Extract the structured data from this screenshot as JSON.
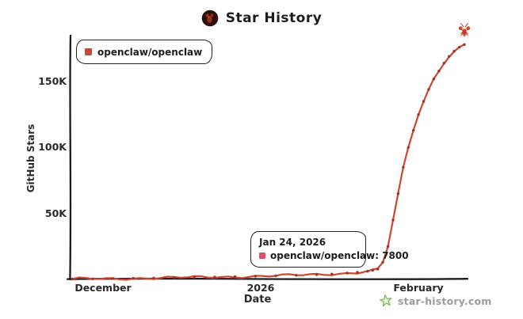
{
  "title": "Star History",
  "legend": {
    "series_label": "openclaw/openclaw",
    "marker_color": "#cc4731"
  },
  "tooltip": {
    "date": "Jan 24, 2026",
    "series": "openclaw/openclaw",
    "value": "7800",
    "line2": "openclaw/openclaw: 7800",
    "marker_color": "#d94f66"
  },
  "watermark": {
    "text": "star-history.com",
    "icon_color": "#7cb94e"
  },
  "colors": {
    "line": "#cc4731",
    "dot": "#a03524",
    "axis": "#1c1c1c",
    "text": "#2a2a2a",
    "muted_text": "#9c9c9c",
    "logo_bg": "#2d100c",
    "logo_mark": "#93301f",
    "lobster": "#c23b2a",
    "lobster_accent": "#e9a23b"
  },
  "chart_data": {
    "type": "line",
    "title": "Star History",
    "xlabel": "Date",
    "ylabel": "GitHub Stars",
    "x_range": [
      "2025-11-25",
      "2026-02-10"
    ],
    "ylim": [
      0,
      180000
    ],
    "grid": false,
    "legend_position": "top-left",
    "xticks": [
      {
        "label": "December",
        "date": "2025-12-01"
      },
      {
        "label": "2026",
        "date": "2026-01-01"
      },
      {
        "label": "February",
        "date": "2026-02-01"
      }
    ],
    "yticks": [
      {
        "label": "50K",
        "value": 50000
      },
      {
        "label": "100K",
        "value": 100000
      },
      {
        "label": "150K",
        "value": 150000
      }
    ],
    "highlighted_point": {
      "date": "2026-01-24",
      "stars": 7800
    },
    "series": [
      {
        "name": "openclaw/openclaw",
        "color": "#cc4731",
        "end_marker": "lobster-icon",
        "points": [
          {
            "date": "2025-11-25",
            "stars": 300
          },
          {
            "date": "2025-11-29",
            "stars": 450
          },
          {
            "date": "2025-12-03",
            "stars": 650
          },
          {
            "date": "2025-12-07",
            "stars": 850
          },
          {
            "date": "2025-12-11",
            "stars": 1050
          },
          {
            "date": "2025-12-15",
            "stars": 1300
          },
          {
            "date": "2025-12-19",
            "stars": 1550
          },
          {
            "date": "2025-12-23",
            "stars": 1800
          },
          {
            "date": "2025-12-27",
            "stars": 2100
          },
          {
            "date": "2025-12-31",
            "stars": 2400
          },
          {
            "date": "2026-01-04",
            "stars": 2750
          },
          {
            "date": "2026-01-08",
            "stars": 3150
          },
          {
            "date": "2026-01-12",
            "stars": 3600
          },
          {
            "date": "2026-01-15",
            "stars": 4100
          },
          {
            "date": "2026-01-18",
            "stars": 4800
          },
          {
            "date": "2026-01-20",
            "stars": 5400
          },
          {
            "date": "2026-01-22",
            "stars": 6200
          },
          {
            "date": "2026-01-23",
            "stars": 6900
          },
          {
            "date": "2026-01-24",
            "stars": 7800
          },
          {
            "date": "2026-01-25",
            "stars": 13000
          },
          {
            "date": "2026-01-26",
            "stars": 25000
          },
          {
            "date": "2026-01-27",
            "stars": 45000
          },
          {
            "date": "2026-01-28",
            "stars": 65000
          },
          {
            "date": "2026-01-29",
            "stars": 85000
          },
          {
            "date": "2026-01-30",
            "stars": 100000
          },
          {
            "date": "2026-01-31",
            "stars": 113000
          },
          {
            "date": "2026-02-01",
            "stars": 125000
          },
          {
            "date": "2026-02-02",
            "stars": 135000
          },
          {
            "date": "2026-02-03",
            "stars": 144000
          },
          {
            "date": "2026-02-04",
            "stars": 152000
          },
          {
            "date": "2026-02-05",
            "stars": 158000
          },
          {
            "date": "2026-02-06",
            "stars": 164000
          },
          {
            "date": "2026-02-07",
            "stars": 169000
          },
          {
            "date": "2026-02-08",
            "stars": 173000
          },
          {
            "date": "2026-02-09",
            "stars": 176000
          },
          {
            "date": "2026-02-10",
            "stars": 178000
          }
        ]
      }
    ]
  }
}
